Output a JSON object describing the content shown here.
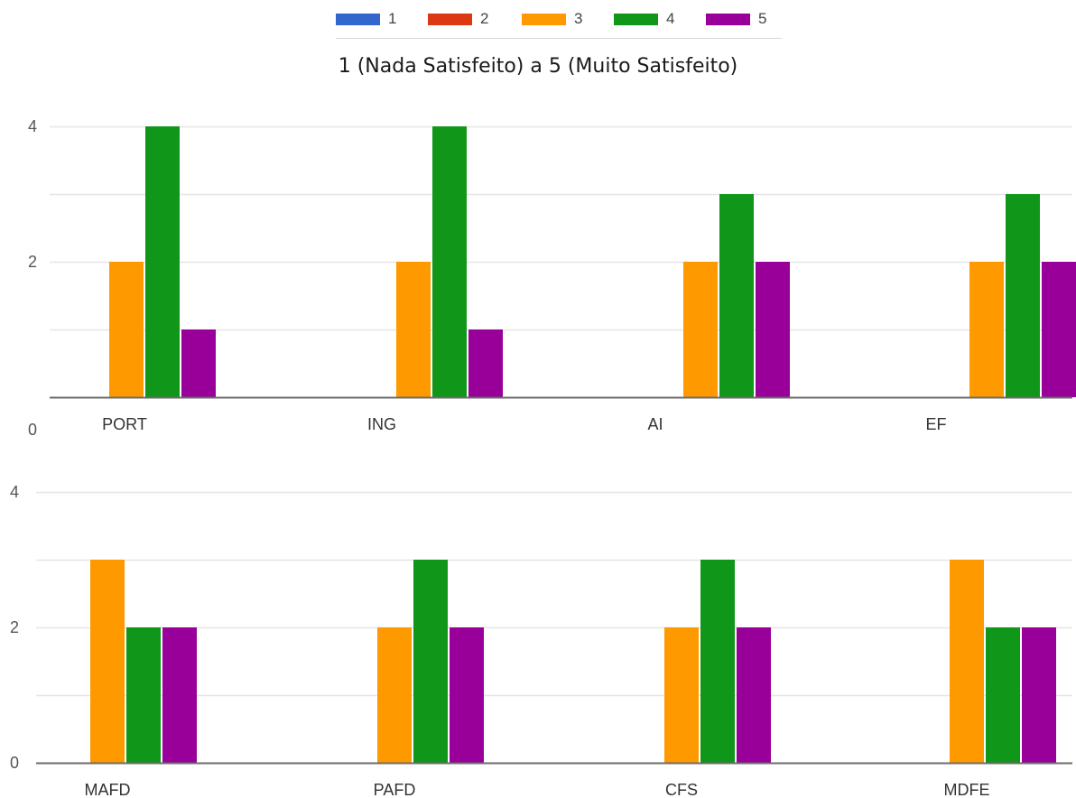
{
  "subtitle": "1 (Nada Satisfeito) a 5 (Muito Satisfeito)",
  "legend": [
    {
      "label": "1",
      "color": "#3366cc"
    },
    {
      "label": "2",
      "color": "#dc3912"
    },
    {
      "label": "3",
      "color": "#ff9900"
    },
    {
      "label": "4",
      "color": "#109618"
    },
    {
      "label": "5",
      "color": "#990099"
    }
  ],
  "chart_data": [
    {
      "type": "bar",
      "categories": [
        "PORT",
        "ING",
        "AI",
        "EF"
      ],
      "series": [
        {
          "name": "1",
          "color": "#3366cc",
          "values": [
            0,
            0,
            0,
            0
          ]
        },
        {
          "name": "2",
          "color": "#dc3912",
          "values": [
            0,
            0,
            0,
            0
          ]
        },
        {
          "name": "3",
          "color": "#ff9900",
          "values": [
            2,
            2,
            2,
            2
          ]
        },
        {
          "name": "4",
          "color": "#109618",
          "values": [
            4,
            4,
            3,
            3
          ]
        },
        {
          "name": "5",
          "color": "#990099",
          "values": [
            1,
            1,
            2,
            2
          ]
        }
      ],
      "yticks": [
        "0",
        "2",
        "4"
      ],
      "ylim": [
        0,
        4
      ],
      "grid": true
    },
    {
      "type": "bar",
      "categories": [
        "MAFD",
        "PAFD",
        "CFS",
        "MDFE"
      ],
      "series": [
        {
          "name": "1",
          "color": "#3366cc",
          "values": [
            0,
            0,
            0,
            0
          ]
        },
        {
          "name": "2",
          "color": "#dc3912",
          "values": [
            0,
            0,
            0,
            0
          ]
        },
        {
          "name": "3",
          "color": "#ff9900",
          "values": [
            3,
            2,
            2,
            3
          ]
        },
        {
          "name": "4",
          "color": "#109618",
          "values": [
            2,
            3,
            3,
            2
          ]
        },
        {
          "name": "5",
          "color": "#990099",
          "values": [
            2,
            2,
            2,
            2
          ]
        }
      ],
      "yticks": [
        "0",
        "2",
        "4"
      ],
      "ylim": [
        0,
        4
      ],
      "grid": true
    }
  ]
}
